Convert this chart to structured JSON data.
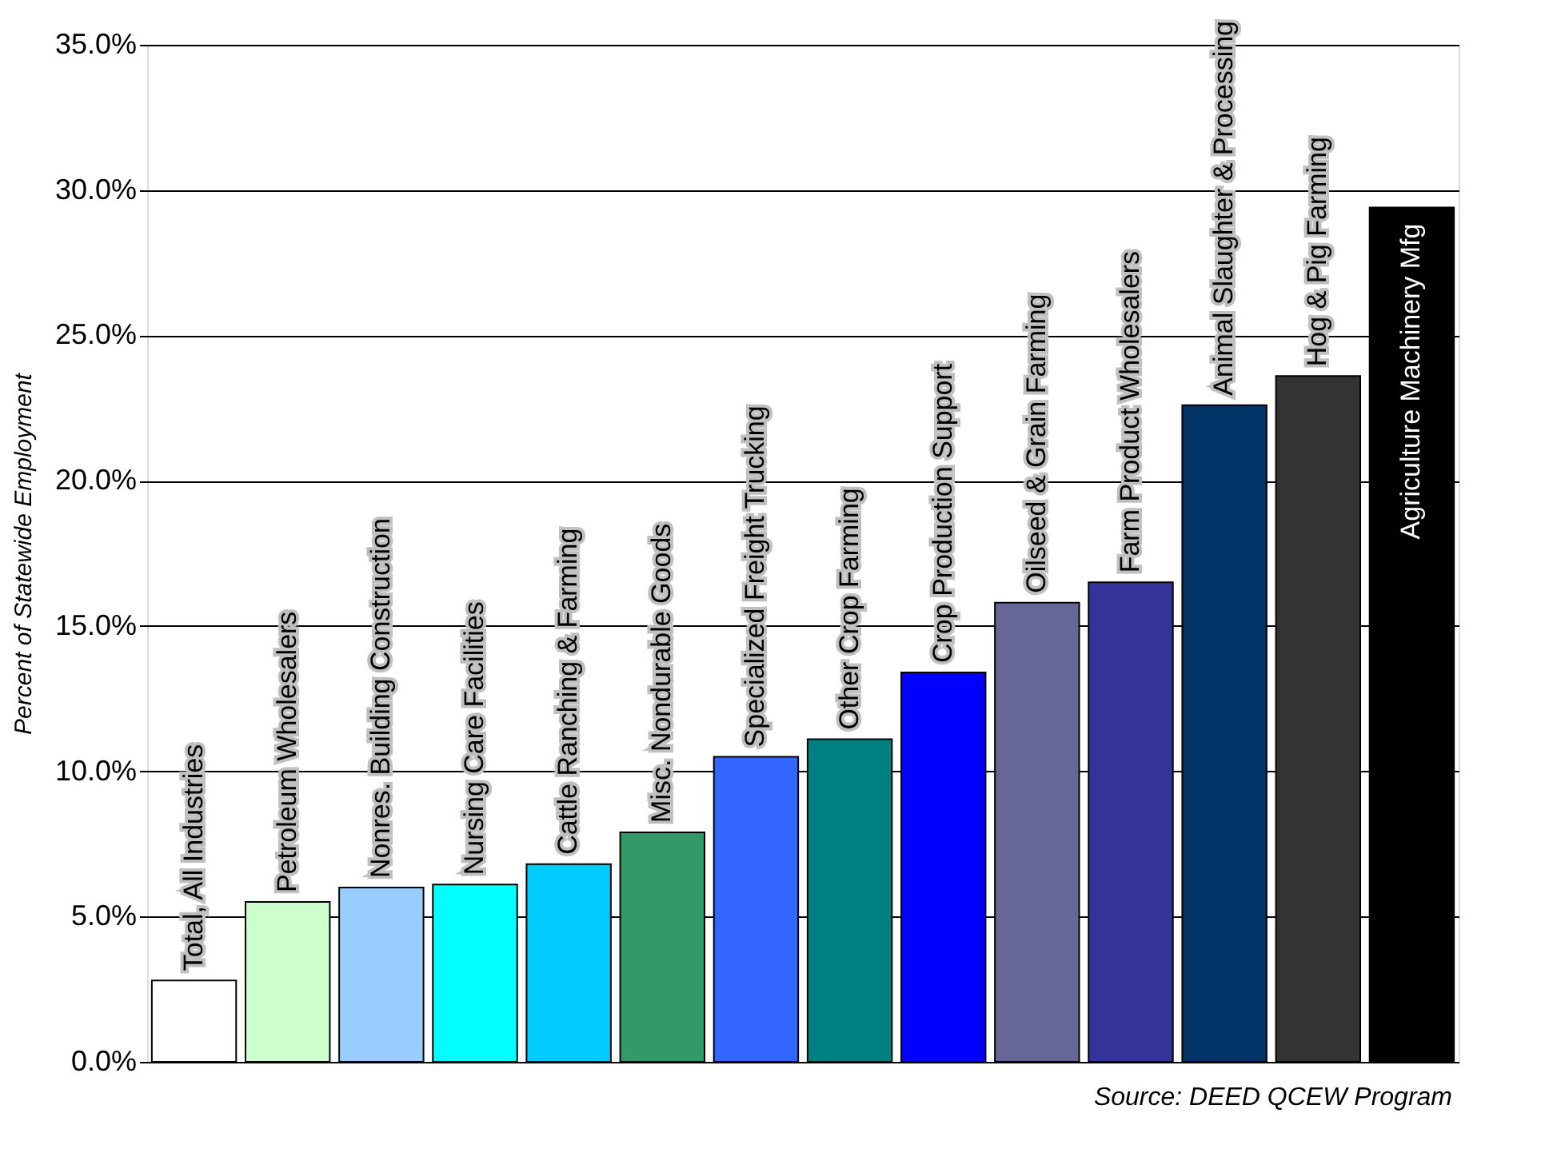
{
  "chart_data": {
    "type": "bar",
    "ylabel": "Percent of Statewide Employment",
    "categories": [
      "Total, All Industries",
      "Petroleum Wholesalers",
      "Nonres. Building Construction",
      "Nursing Care Facilities",
      "Cattle Ranching & Farming",
      "Misc. Nondurable Goods",
      "Specialized Freight Trucking",
      "Other Crop Farming",
      "Crop Production Support",
      "Oilseed & Grain Farming",
      "Farm Product Wholesalers",
      "Animal Slaughter & Processing",
      "Hog & Pig Farming",
      "Agriculture Machinery Mfg"
    ],
    "values": [
      2.8,
      5.5,
      6.0,
      6.1,
      6.8,
      7.9,
      10.5,
      11.1,
      13.4,
      15.8,
      16.5,
      22.6,
      23.6,
      29.4
    ],
    "colors": [
      "#ffffff",
      "#ccffcc",
      "#99ccff",
      "#00ffff",
      "#00ccff",
      "#339966",
      "#3366ff",
      "#008080",
      "#0000ff",
      "#666699",
      "#333399",
      "#003366",
      "#333333",
      "#000000"
    ],
    "ylim": [
      0,
      35
    ],
    "yticks": [
      {
        "value": 0,
        "label": "0.0%"
      },
      {
        "value": 5,
        "label": "5.0%"
      },
      {
        "value": 10,
        "label": "10.0%"
      },
      {
        "value": 15,
        "label": "15.0%"
      },
      {
        "value": 20,
        "label": "20.0%"
      },
      {
        "value": 25,
        "label": "25.0%"
      },
      {
        "value": 30,
        "label": "30.0%"
      },
      {
        "value": 35,
        "label": "35.0%"
      }
    ],
    "grid": "y",
    "tick_labels": "y",
    "annotations": [
      "Source: DEED QCEW Program"
    ]
  }
}
